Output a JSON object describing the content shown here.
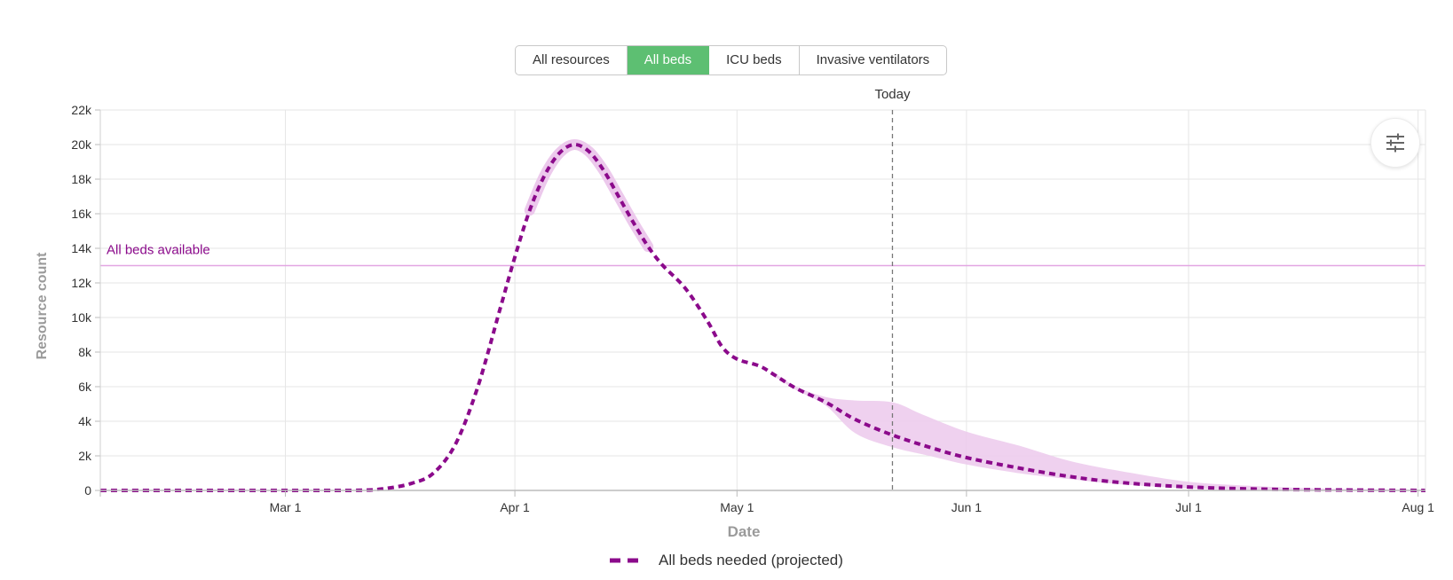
{
  "tabs": [
    {
      "label": "All resources",
      "active": false
    },
    {
      "label": "All beds",
      "active": true
    },
    {
      "label": "ICU beds",
      "active": false
    },
    {
      "label": "Invasive ventilators",
      "active": false
    }
  ],
  "settings": {
    "icon": "sliders-icon"
  },
  "colors": {
    "series": "#8b0a8b",
    "band": "#ecc9ec",
    "reference_line": "#e2a6e2",
    "reference_label": "#8b0a8b",
    "active_tab": "#5dbf72",
    "grid": "#e6e6e6",
    "today_line": "#777777"
  },
  "chart_data": {
    "type": "line",
    "title": "",
    "xlabel": "Date",
    "ylabel": "Resource count",
    "x_range": [
      "2020-02-05",
      "2020-08-02"
    ],
    "ylim": [
      0,
      22000
    ],
    "x_ticks": [
      {
        "date": "2020-03-01",
        "label": "Mar 1"
      },
      {
        "date": "2020-04-01",
        "label": "Apr 1"
      },
      {
        "date": "2020-05-01",
        "label": "May 1"
      },
      {
        "date": "2020-06-01",
        "label": "Jun 1"
      },
      {
        "date": "2020-07-01",
        "label": "Jul 1"
      },
      {
        "date": "2020-08-01",
        "label": "Aug 1"
      }
    ],
    "y_ticks": [
      {
        "value": 0,
        "label": "0"
      },
      {
        "value": 2000,
        "label": "2k"
      },
      {
        "value": 4000,
        "label": "4k"
      },
      {
        "value": 6000,
        "label": "6k"
      },
      {
        "value": 8000,
        "label": "8k"
      },
      {
        "value": 10000,
        "label": "10k"
      },
      {
        "value": 12000,
        "label": "12k"
      },
      {
        "value": 14000,
        "label": "14k"
      },
      {
        "value": 16000,
        "label": "16k"
      },
      {
        "value": 18000,
        "label": "18k"
      },
      {
        "value": 20000,
        "label": "20k"
      },
      {
        "value": 22000,
        "label": "22k"
      }
    ],
    "grid": true,
    "legend_position": "bottom-center",
    "reference_line": {
      "label": "All beds available",
      "value": 13000
    },
    "today_marker": {
      "label": "Today",
      "date": "2020-05-22"
    },
    "series": [
      {
        "name": "All beds needed (projected)",
        "style": "dashed",
        "points": [
          [
            "2020-02-05",
            0
          ],
          [
            "2020-03-01",
            0
          ],
          [
            "2020-03-10",
            0
          ],
          [
            "2020-03-14",
            80
          ],
          [
            "2020-03-18",
            400
          ],
          [
            "2020-03-21",
            1000
          ],
          [
            "2020-03-24",
            2700
          ],
          [
            "2020-03-27",
            6000
          ],
          [
            "2020-03-30",
            10500
          ],
          [
            "2020-04-01",
            13500
          ],
          [
            "2020-04-03",
            16200
          ],
          [
            "2020-04-05",
            18200
          ],
          [
            "2020-04-07",
            19500
          ],
          [
            "2020-04-09",
            20000
          ],
          [
            "2020-04-11",
            19600
          ],
          [
            "2020-04-13",
            18500
          ],
          [
            "2020-04-15",
            17000
          ],
          [
            "2020-04-17",
            15500
          ],
          [
            "2020-04-19",
            14100
          ],
          [
            "2020-04-21",
            13000
          ],
          [
            "2020-04-24",
            11700
          ],
          [
            "2020-04-27",
            9800
          ],
          [
            "2020-04-29",
            8300
          ],
          [
            "2020-05-01",
            7600
          ],
          [
            "2020-05-04",
            7200
          ],
          [
            "2020-05-06",
            6700
          ],
          [
            "2020-05-09",
            5900
          ],
          [
            "2020-05-13",
            5100
          ],
          [
            "2020-05-17",
            4100
          ],
          [
            "2020-05-22",
            3200
          ],
          [
            "2020-05-27",
            2500
          ],
          [
            "2020-06-01",
            1900
          ],
          [
            "2020-06-08",
            1300
          ],
          [
            "2020-06-15",
            800
          ],
          [
            "2020-06-22",
            450
          ],
          [
            "2020-07-01",
            200
          ],
          [
            "2020-07-10",
            80
          ],
          [
            "2020-07-20",
            30
          ],
          [
            "2020-08-02",
            0
          ]
        ],
        "band_upper": [
          [
            "2020-05-06",
            6800
          ],
          [
            "2020-05-09",
            6000
          ],
          [
            "2020-05-13",
            5400
          ],
          [
            "2020-05-17",
            5200
          ],
          [
            "2020-05-22",
            5100
          ],
          [
            "2020-05-26",
            4400
          ],
          [
            "2020-06-01",
            3400
          ],
          [
            "2020-06-08",
            2600
          ],
          [
            "2020-06-15",
            1700
          ],
          [
            "2020-06-22",
            1100
          ],
          [
            "2020-07-01",
            500
          ],
          [
            "2020-07-10",
            250
          ],
          [
            "2020-07-20",
            100
          ],
          [
            "2020-08-02",
            30
          ]
        ],
        "band_lower": [
          [
            "2020-05-06",
            6600
          ],
          [
            "2020-05-09",
            5800
          ],
          [
            "2020-05-13",
            4900
          ],
          [
            "2020-05-17",
            3300
          ],
          [
            "2020-05-22",
            2500
          ],
          [
            "2020-05-27",
            2000
          ],
          [
            "2020-06-01",
            1500
          ],
          [
            "2020-06-08",
            1000
          ],
          [
            "2020-06-15",
            650
          ],
          [
            "2020-06-22",
            350
          ],
          [
            "2020-07-01",
            120
          ],
          [
            "2020-07-10",
            40
          ],
          [
            "2020-07-20",
            10
          ],
          [
            "2020-08-02",
            0
          ]
        ]
      }
    ]
  }
}
